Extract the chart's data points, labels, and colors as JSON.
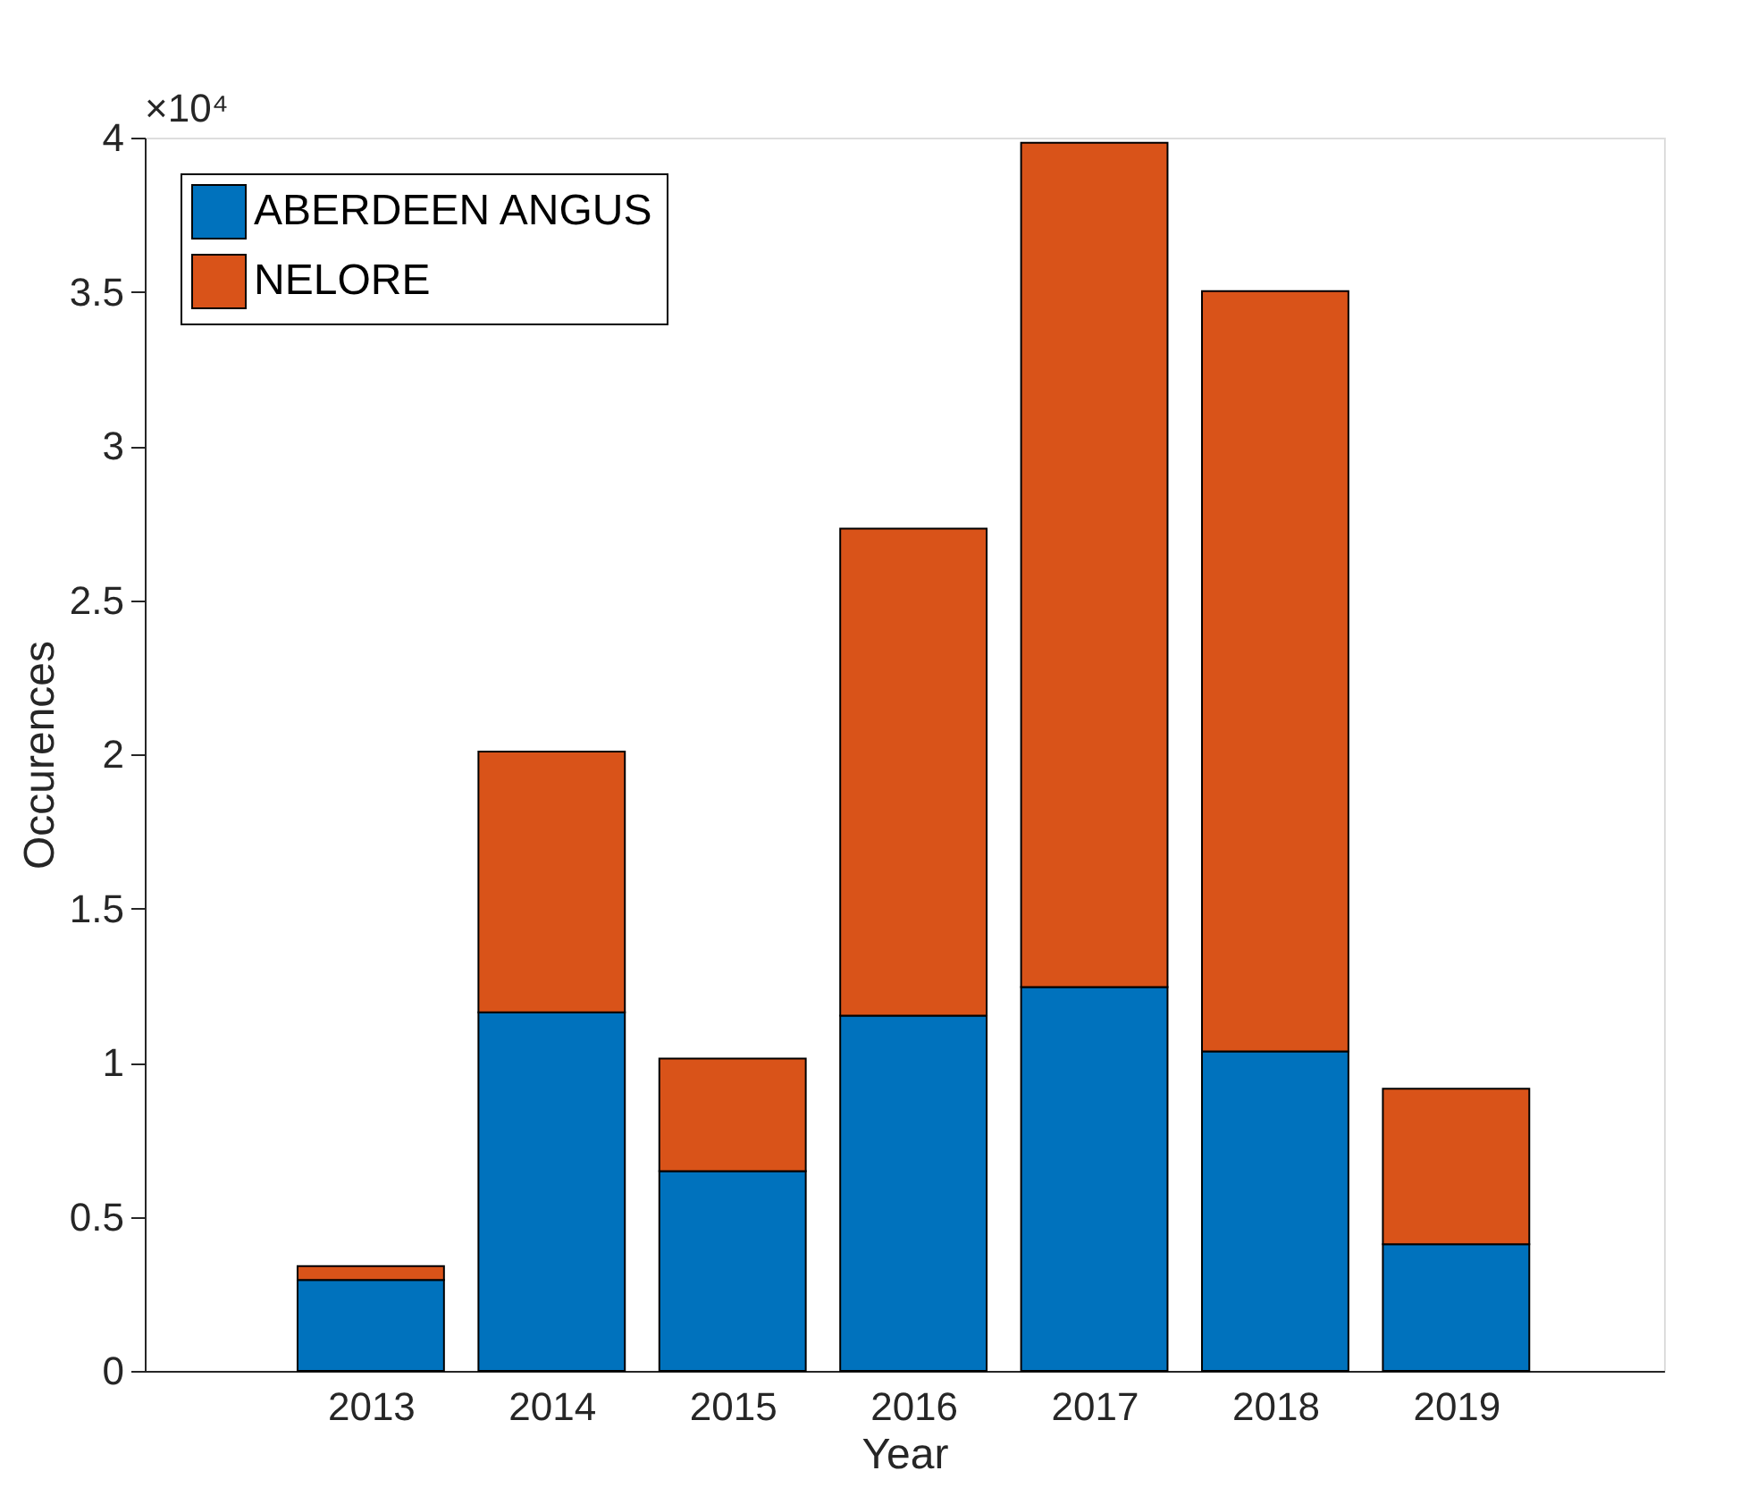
{
  "chart_data": {
    "type": "bar",
    "stacked": true,
    "xlabel": "Year",
    "ylabel": "Occurences",
    "x": [
      2013,
      2014,
      2015,
      2016,
      2017,
      2018,
      2019
    ],
    "series": [
      {
        "name": "ABERDEEN ANGUS",
        "color": "#0072bd",
        "values": [
          0.295,
          1.163,
          0.648,
          1.152,
          1.245,
          1.036,
          0.411
        ]
      },
      {
        "name": "NELORE",
        "color": "#d95319",
        "values": [
          0.045,
          0.846,
          0.365,
          1.58,
          2.738,
          2.466,
          0.504
        ]
      }
    ],
    "xlim": [
      2011.8,
      2020.1
    ],
    "xticks": [
      2013,
      2014,
      2015,
      2016,
      2017,
      2018,
      2019
    ],
    "ylim": [
      0,
      4
    ],
    "yticks": [
      0,
      0.5,
      1,
      1.5,
      2,
      2.5,
      3,
      3.5,
      4
    ],
    "annotations": [
      "×10⁴"
    ],
    "grid": false,
    "legend": "top left"
  }
}
